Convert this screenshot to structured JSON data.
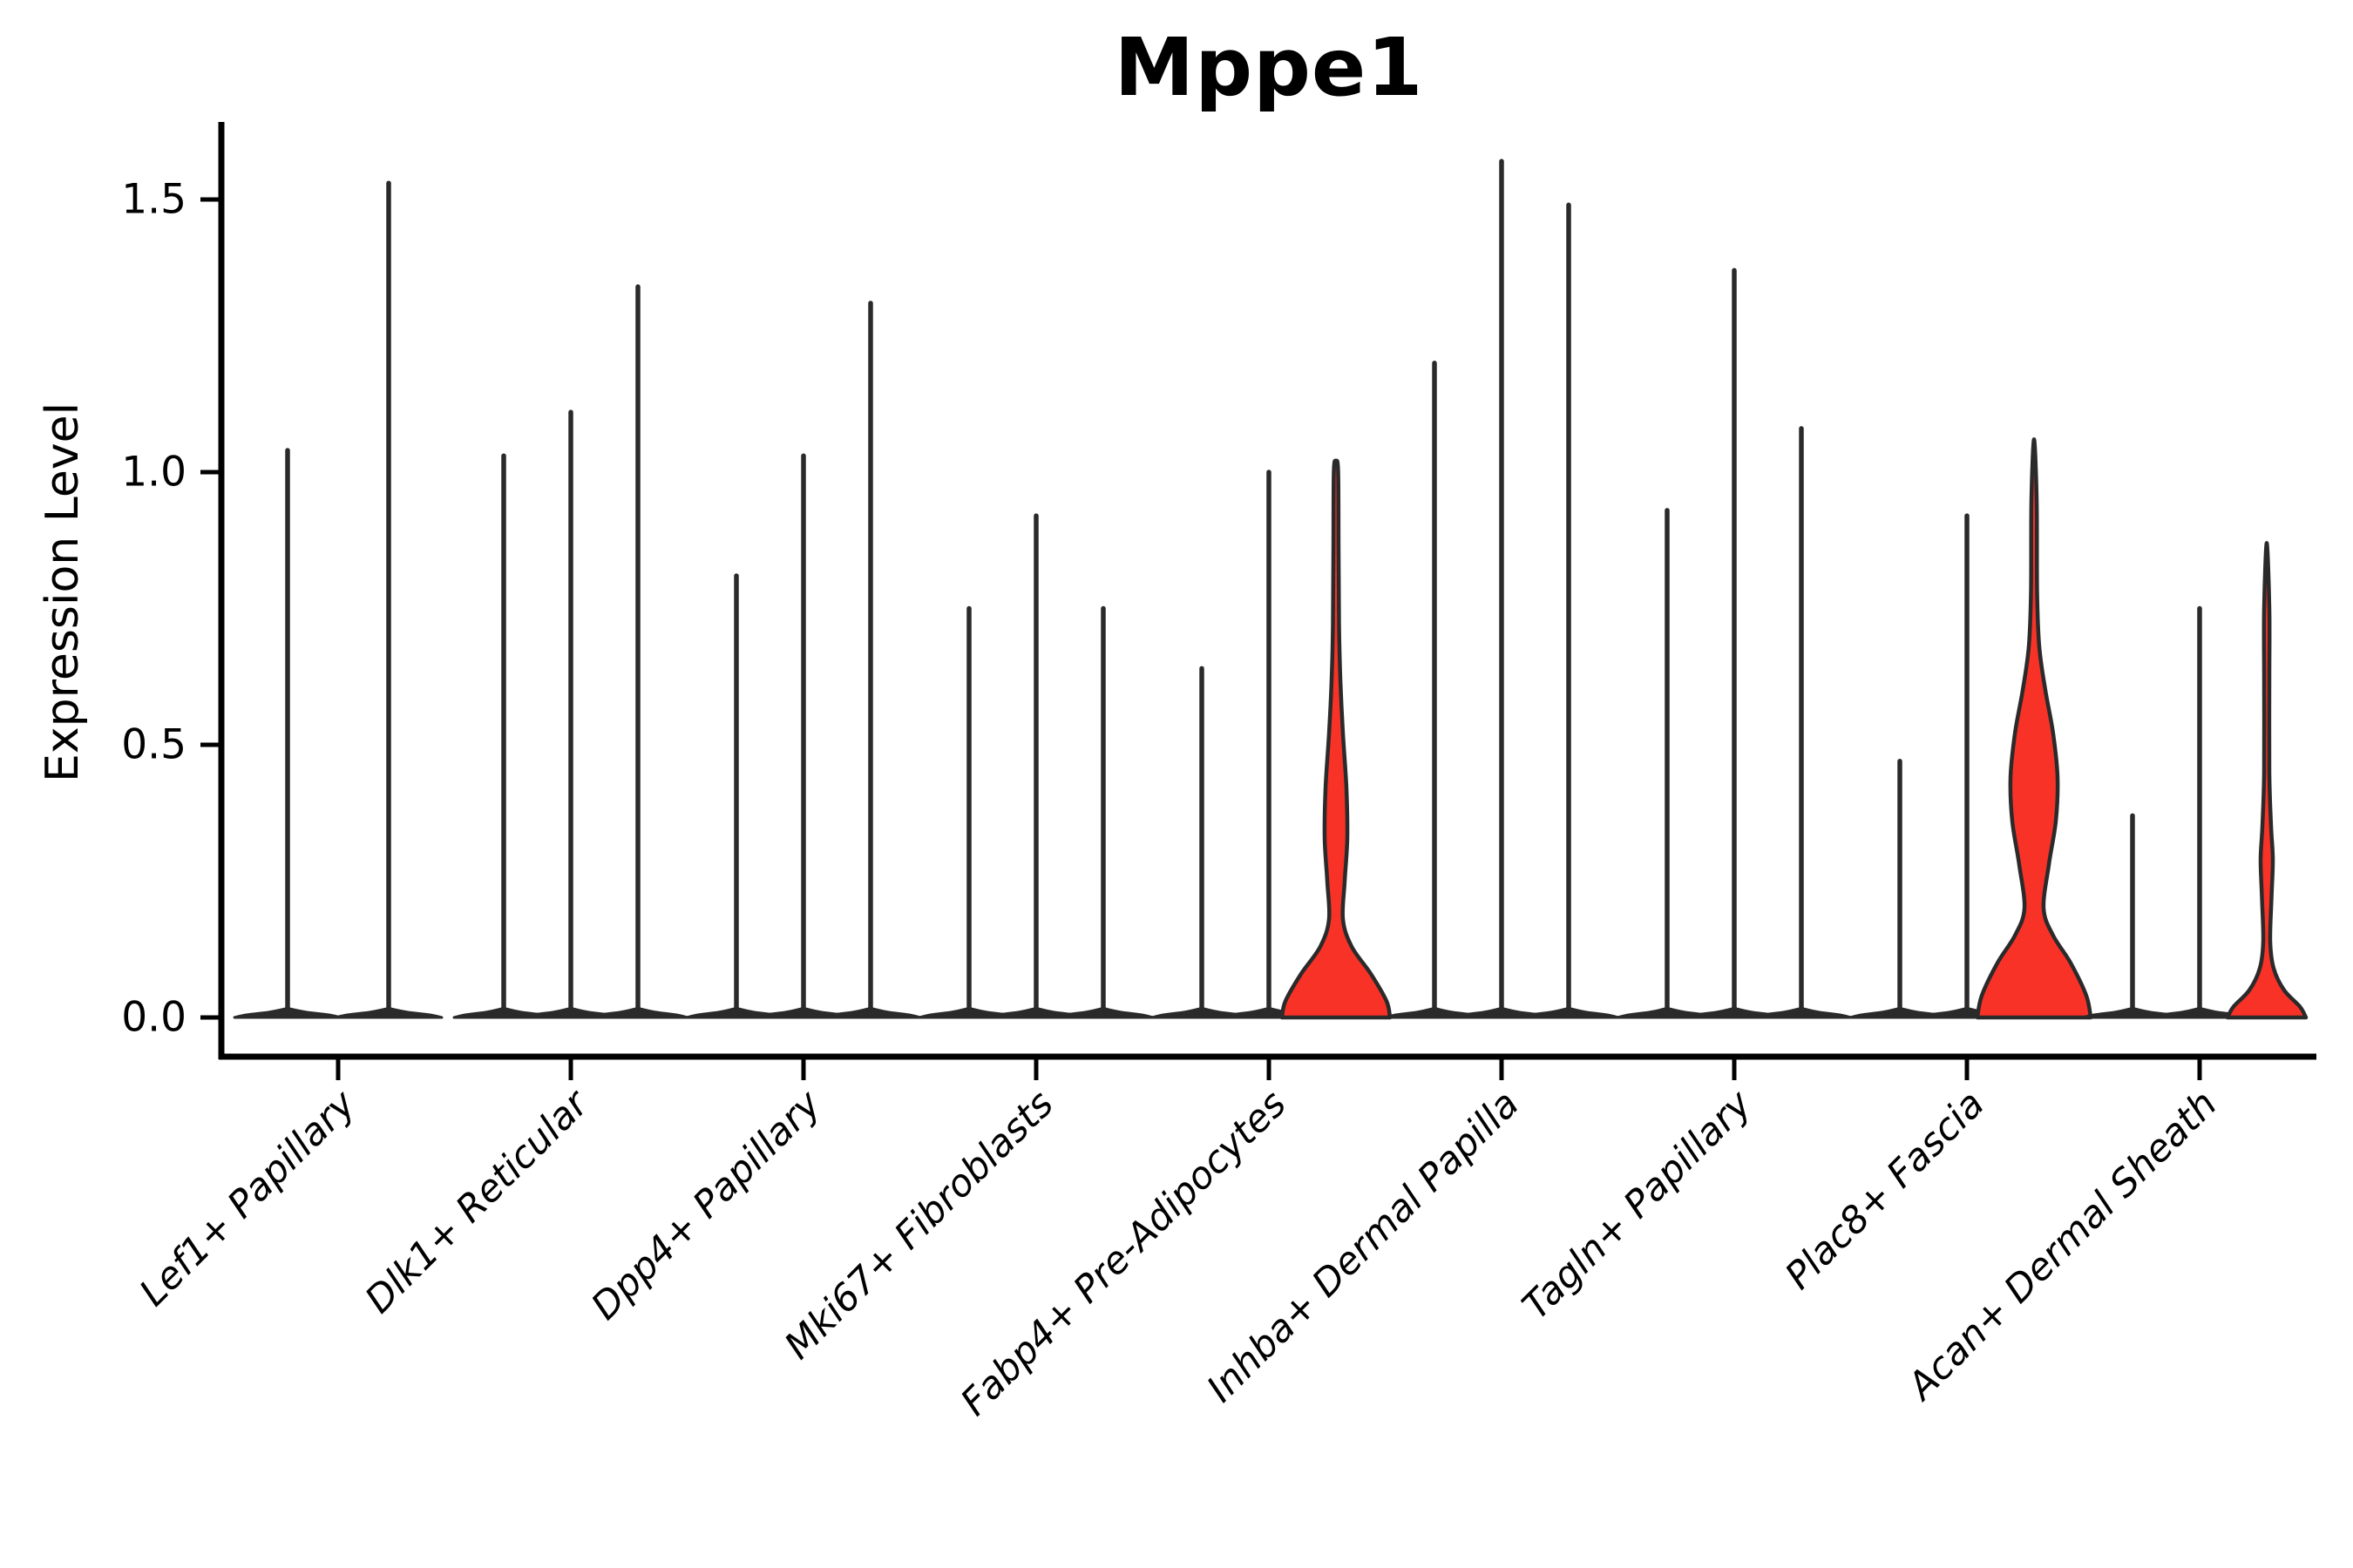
{
  "chart_data": {
    "type": "violin",
    "title": "Mppe1",
    "ylabel": "Expression Level",
    "yticks": [
      {
        "label": "0.0",
        "value": 0.0
      },
      {
        "label": "0.5",
        "value": 0.5
      },
      {
        "label": "1.0",
        "value": 1.0
      },
      {
        "label": "1.5",
        "value": 1.5
      }
    ],
    "ylim": [
      0,
      1.647
    ],
    "grid": false,
    "legend": "none",
    "colors": {
      "violin_fill": "#f93228",
      "violin_stroke": "#2a2a2a",
      "axis": "#000000",
      "text": "#000000"
    },
    "groups": [
      {
        "category": "Lef1+ Papillary",
        "violins": [
          {
            "value": 1.04,
            "style": "spike"
          },
          {
            "value": 1.53,
            "style": "spike"
          }
        ]
      },
      {
        "category": "Dlk1+ Reticular",
        "violins": [
          {
            "value": 1.03,
            "style": "spike"
          },
          {
            "value": 1.11,
            "style": "spike"
          },
          {
            "value": 1.34,
            "style": "spike"
          }
        ]
      },
      {
        "category": "Dpp4+ Papillary",
        "violins": [
          {
            "value": 0.81,
            "style": "spike"
          },
          {
            "value": 1.03,
            "style": "spike"
          },
          {
            "value": 1.31,
            "style": "spike"
          }
        ]
      },
      {
        "category": "Mki67+ Fibroblasts",
        "violins": [
          {
            "value": 0.75,
            "style": "spike"
          },
          {
            "value": 0.92,
            "style": "spike"
          },
          {
            "value": 0.75,
            "style": "spike"
          }
        ]
      },
      {
        "category": "Fabp4+ Pre-Adipocytes",
        "violins": [
          {
            "value": 0.64,
            "style": "spike"
          },
          {
            "value": 1.0,
            "style": "spike"
          },
          {
            "value": 1.02,
            "style": "shaped",
            "profile": [
              [
                0,
                62
              ],
              [
                0.03,
                58
              ],
              [
                0.08,
                40
              ],
              [
                0.13,
                18
              ],
              [
                0.18,
                8
              ],
              [
                0.25,
                10
              ],
              [
                0.33,
                13
              ],
              [
                0.42,
                12
              ],
              [
                0.52,
                8
              ],
              [
                0.62,
                5
              ],
              [
                0.72,
                3.5
              ],
              [
                0.85,
                3
              ],
              [
                1.0,
                2.5
              ],
              [
                1.02,
                0
              ]
            ]
          }
        ]
      },
      {
        "category": "Inhba+ Dermal Papilla",
        "violins": [
          {
            "value": 1.2,
            "style": "spike"
          },
          {
            "value": 1.57,
            "style": "spike"
          },
          {
            "value": 1.49,
            "style": "spike"
          }
        ]
      },
      {
        "category": "Tagln+ Papillary",
        "violins": [
          {
            "value": 0.93,
            "style": "spike"
          },
          {
            "value": 1.37,
            "style": "spike"
          },
          {
            "value": 1.08,
            "style": "spike"
          }
        ]
      },
      {
        "category": "Plac8+ Fascia",
        "violins": [
          {
            "value": 0.47,
            "style": "spike"
          },
          {
            "value": 0.92,
            "style": "spike"
          },
          {
            "value": 1.06,
            "style": "shaped",
            "profile": [
              [
                0,
                65
              ],
              [
                0.04,
                60
              ],
              [
                0.1,
                42
              ],
              [
                0.15,
                22
              ],
              [
                0.2,
                11
              ],
              [
                0.28,
                17
              ],
              [
                0.36,
                25
              ],
              [
                0.44,
                27
              ],
              [
                0.52,
                22
              ],
              [
                0.6,
                13
              ],
              [
                0.68,
                6
              ],
              [
                0.78,
                3.5
              ],
              [
                0.95,
                3
              ],
              [
                1.06,
                0
              ]
            ]
          }
        ]
      },
      {
        "category": "Acan+ Dermal Sheath",
        "violins": [
          {
            "value": 0.37,
            "style": "spike"
          },
          {
            "value": 0.75,
            "style": "spike"
          },
          {
            "value": 0.87,
            "style": "shaped",
            "profile": [
              [
                0,
                45
              ],
              [
                0.02,
                38
              ],
              [
                0.05,
                20
              ],
              [
                0.09,
                8
              ],
              [
                0.14,
                4
              ],
              [
                0.22,
                5.5
              ],
              [
                0.29,
                7
              ],
              [
                0.35,
                5
              ],
              [
                0.45,
                3
              ],
              [
                0.62,
                3
              ],
              [
                0.75,
                3
              ],
              [
                0.87,
                0
              ]
            ]
          }
        ]
      }
    ]
  }
}
